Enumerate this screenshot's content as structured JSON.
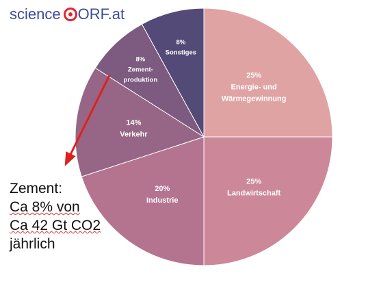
{
  "logo": {
    "part1": "science",
    "part2": "ORF.at"
  },
  "chart_data": {
    "type": "pie",
    "title": "",
    "slices": [
      {
        "label": "Energie- und Wärmegewinnung",
        "label_lines": [
          "Energie- und",
          "Wärmegewinnung"
        ],
        "value": 25,
        "display": "25%",
        "color": "#e0a3a3"
      },
      {
        "label": "Landwirtschaft",
        "label_lines": [
          "Landwirtschaft"
        ],
        "value": 25,
        "display": "25%",
        "color": "#cc8899"
      },
      {
        "label": "Industrie",
        "label_lines": [
          "Industrie"
        ],
        "value": 20,
        "display": "20%",
        "color": "#b47490"
      },
      {
        "label": "Verkehr",
        "label_lines": [
          "Verkehr"
        ],
        "value": 14,
        "display": "14%",
        "color": "#976686"
      },
      {
        "label": "Zementproduktion",
        "label_lines": [
          "Zement-",
          "produktion"
        ],
        "value": 8,
        "display": "8%",
        "color": "#7d5a7f"
      },
      {
        "label": "Sonstiges",
        "label_lines": [
          "Sonstiges"
        ],
        "value": 8,
        "display": "8%",
        "color": "#534a78"
      }
    ],
    "slice_label_color": "#ffffff"
  },
  "annotation": {
    "lines": [
      "Zement:",
      "Ca 8% von",
      "Ca 42 Gt CO2",
      "jährlich"
    ],
    "arrow_color": "#e0201c"
  }
}
